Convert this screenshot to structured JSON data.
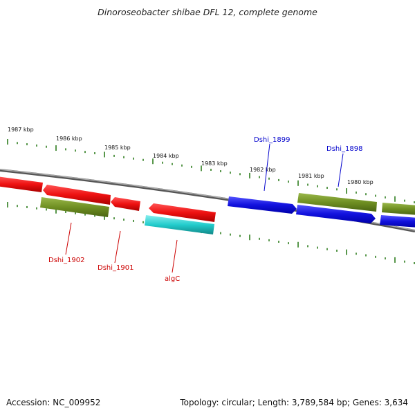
{
  "title": "Dinoroseobacter shibae DFL 12, complete genome",
  "footer": {
    "accession": "Accession: NC_009952",
    "summary": "Topology: circular; Length: 3,789,584 bp; Genes: 3,634"
  },
  "scale_labels": [
    "1987 kbp",
    "1986 kbp",
    "1985 kbp",
    "1984 kbp",
    "1983 kbp",
    "1982 kbp",
    "1981 kbp",
    "1980 kbp"
  ],
  "gene_labels": [
    {
      "name": "Dshi_1902",
      "color": "#cc0000"
    },
    {
      "name": "Dshi_1901",
      "color": "#cc0000"
    },
    {
      "name": "algC",
      "color": "#cc0000"
    },
    {
      "name": "Dshi_1899",
      "color": "#0000cc"
    },
    {
      "name": "Dshi_1898",
      "color": "#0000cc"
    }
  ],
  "colors": {
    "backbone": "#8a8a8a",
    "tick": "#2e7d1e",
    "red_gene": "#ee1111",
    "olive_gene": "#6f8f22",
    "cyan_gene": "#22cccc",
    "blue_gene": "#1111dd"
  }
}
